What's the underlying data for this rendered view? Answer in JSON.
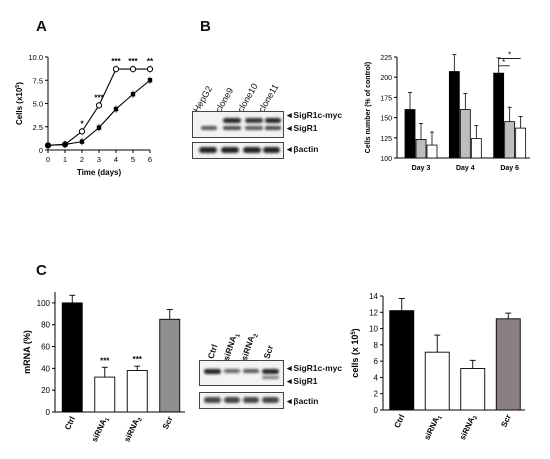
{
  "panels": {
    "a": "A",
    "b": "B",
    "c": "C"
  },
  "chart_data": [
    {
      "id": "growth",
      "type": "line",
      "ylabel": "Cells (x10",
      "ylabel_sup": "5",
      "ylabel_end": ")",
      "xlabel": "Time (days)",
      "xlim": [
        0,
        6
      ],
      "ylim": [
        0,
        10
      ],
      "xticks": [
        "0",
        "1",
        "2",
        "3",
        "4",
        "5",
        "6"
      ],
      "yticks": [
        "0",
        "2.5",
        "5.0",
        "7.5",
        "10.0"
      ],
      "series": [
        {
          "style": "open",
          "x": [
            0,
            1,
            2,
            3,
            4,
            5,
            6
          ],
          "values": [
            0.5,
            0.6,
            2.0,
            4.8,
            8.7,
            8.7,
            8.7
          ]
        },
        {
          "style": "filled",
          "x": [
            0,
            1,
            2,
            3,
            4,
            5,
            6
          ],
          "values": [
            0.5,
            0.6,
            0.9,
            2.4,
            4.4,
            6.0,
            7.5
          ]
        }
      ],
      "annotations": [
        {
          "x": 2,
          "text": "*"
        },
        {
          "x": 3,
          "text": "***"
        },
        {
          "x": 4,
          "text": "***"
        },
        {
          "x": 5,
          "text": "***"
        },
        {
          "x": 6,
          "text": "**"
        }
      ]
    },
    {
      "id": "cellnumber",
      "type": "bar",
      "ylabel": "Cells number (% of control)",
      "ylim": [
        100,
        225
      ],
      "yticks": [
        "100",
        "125",
        "150",
        "175",
        "200",
        "225"
      ],
      "categories": [
        "Day 3",
        "Day 4",
        "Day 6"
      ],
      "series": [
        {
          "color": "#000000",
          "values": [
            160,
            207,
            205
          ]
        },
        {
          "color": "#bdbdbd",
          "values": [
            123,
            160,
            145
          ]
        },
        {
          "color": "#ffffff",
          "values": [
            116,
            124,
            137
          ]
        }
      ],
      "significance": [
        "*",
        "*"
      ]
    },
    {
      "id": "mrna",
      "type": "bar",
      "ylabel": "mRNA (%)",
      "ylim": [
        0,
        110
      ],
      "yticks": [
        "0",
        "20",
        "40",
        "60",
        "80",
        "100"
      ],
      "categories": [
        "Ctrl",
        "siRNA1",
        "siRNA2",
        "Scr"
      ],
      "values": [
        100,
        32,
        38,
        85
      ],
      "colors": [
        "#000000",
        "#ffffff",
        "#ffffff",
        "#8f8f8f"
      ],
      "stars": [
        "",
        "***",
        "***",
        ""
      ]
    },
    {
      "id": "cells",
      "type": "bar",
      "ylabel": "cells (x 10",
      "ylabel_sup": "5",
      "ylabel_end": ")",
      "ylim": [
        0,
        14
      ],
      "yticks": [
        "0",
        "2",
        "4",
        "6",
        "8",
        "10",
        "12",
        "14"
      ],
      "categories": [
        "Ctrl",
        "siRNA1",
        "siRNA2",
        "Scr"
      ],
      "values": [
        12.2,
        7.1,
        5.1,
        11.2
      ],
      "colors": [
        "#000000",
        "#ffffff",
        "#ffffff",
        "#8a7f82"
      ]
    }
  ],
  "blot_b": {
    "lanes": [
      "HepG2",
      "clone9",
      "clone10",
      "clone11"
    ],
    "labels": [
      "SigR1c-myc",
      "SigR1",
      "βactin"
    ]
  },
  "blot_c": {
    "lanes": [
      "Ctrl",
      "siRNA",
      "siRNA",
      "Scr"
    ],
    "lane_subs": [
      "",
      "1",
      "2",
      ""
    ],
    "labels": [
      "SigR1c-myc",
      "SigR1",
      "βactin"
    ]
  }
}
